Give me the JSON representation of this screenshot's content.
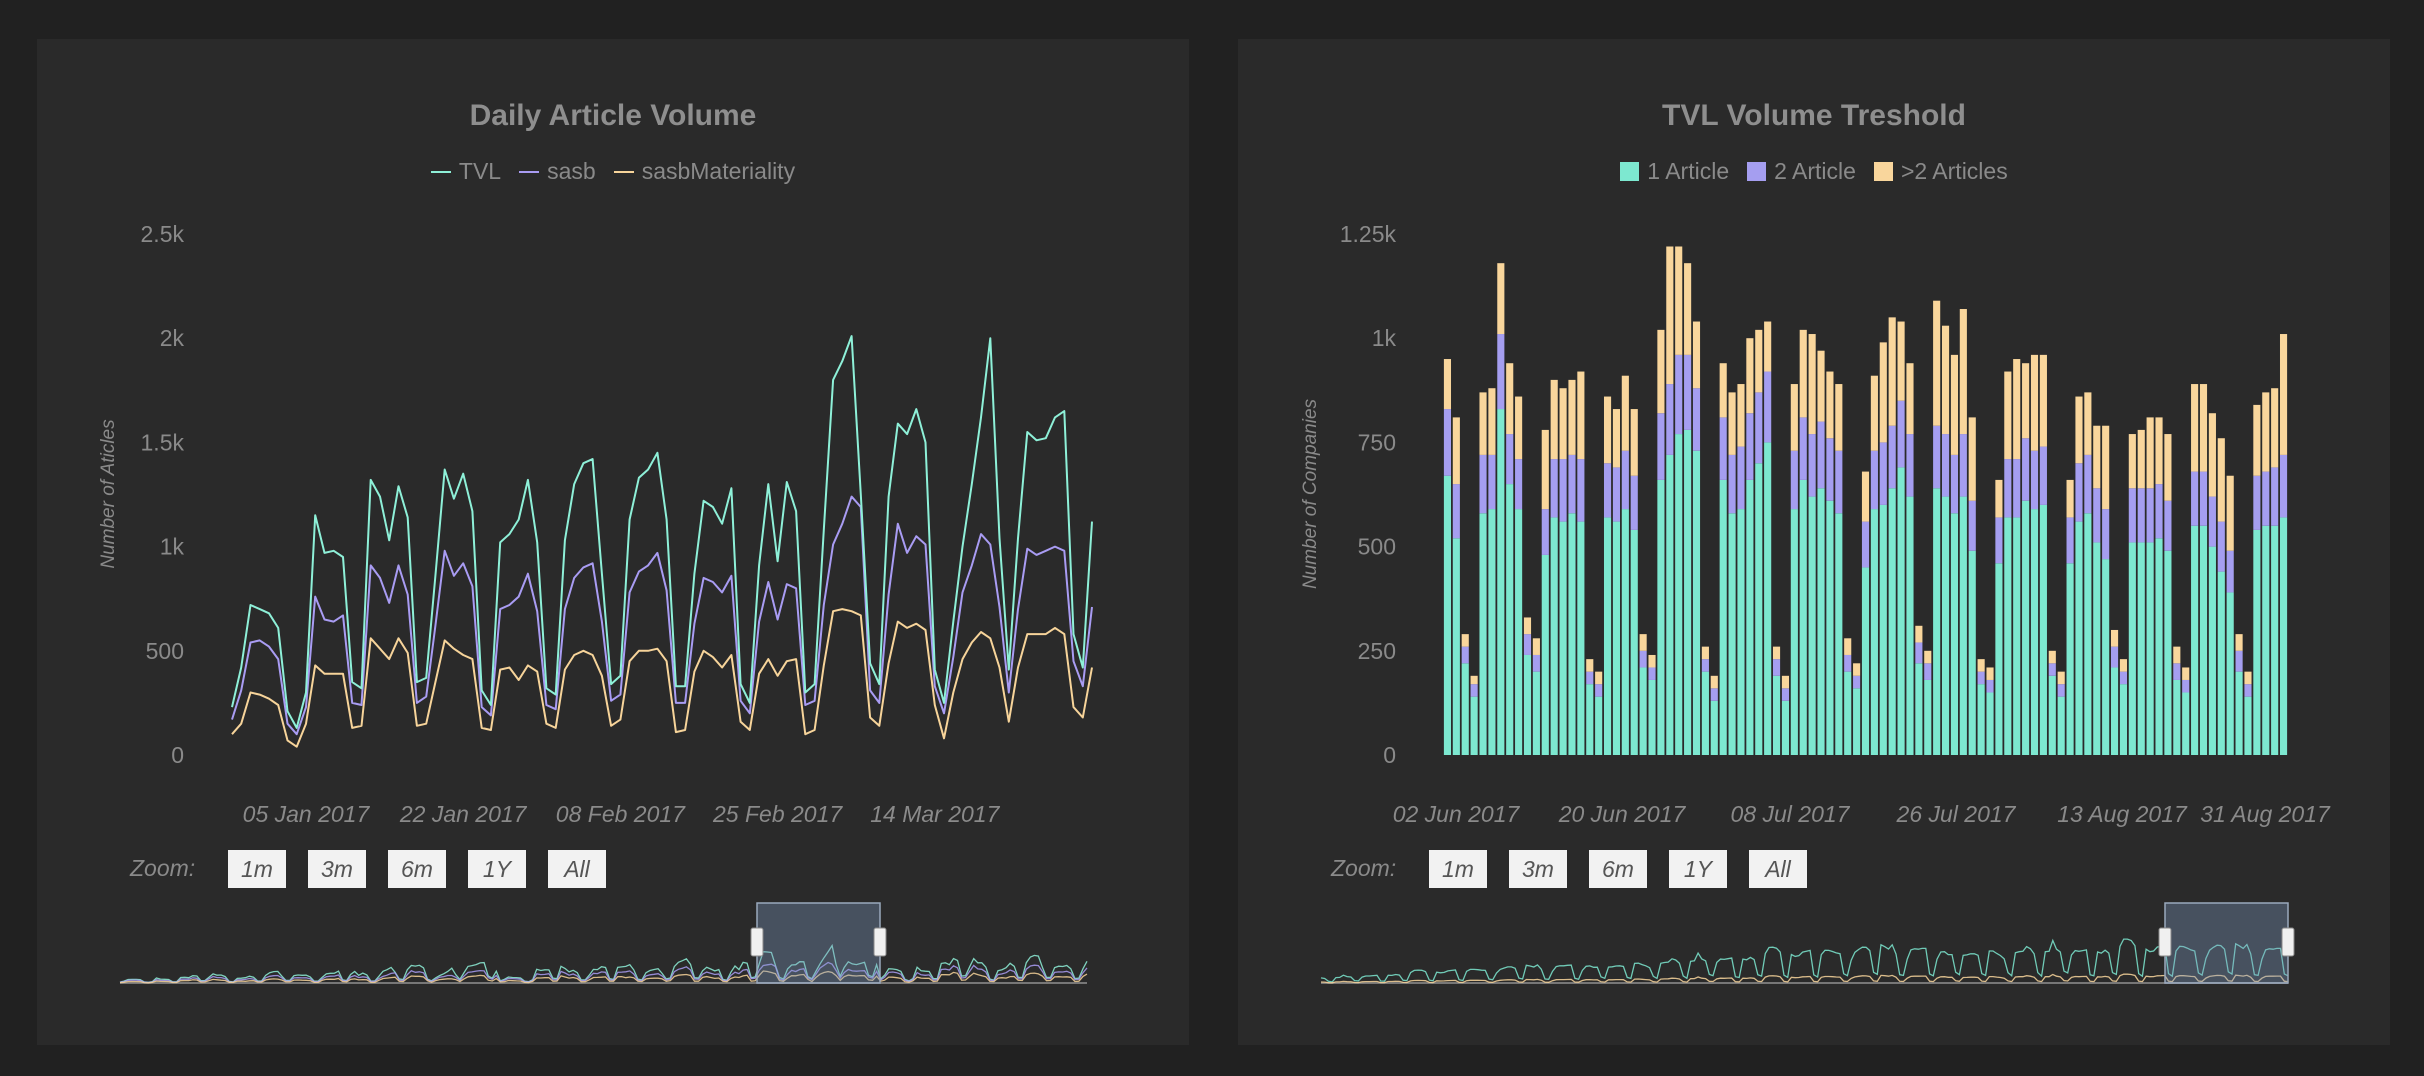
{
  "colors": {
    "tvl": "#8ef0d8",
    "sasb": "#a99cf3",
    "materiality": "#f7d49a",
    "one": "#7de8d0",
    "two": "#a59ef0",
    "more": "#f9d69c"
  },
  "zoom": {
    "label": "Zoom:",
    "buttons": [
      "1m",
      "3m",
      "6m",
      "1Y",
      "All"
    ]
  },
  "chart_data": [
    {
      "type": "line",
      "title": "Daily Article Volume",
      "ylabel": "Number of Aticles",
      "xlabel": "",
      "ylim": [
        0,
        2500
      ],
      "yticks": [
        "0",
        "500",
        "1k",
        "1.5k",
        "2k",
        "2.5k"
      ],
      "xticks": [
        "05 Jan 2017",
        "22 Jan 2017",
        "08 Feb 2017",
        "25 Feb 2017",
        "14 Mar 2017"
      ],
      "legend": "top-center",
      "grid": false,
      "series": [
        {
          "name": "TVL",
          "values": [
            230,
            420,
            720,
            700,
            680,
            610,
            210,
            130,
            300,
            1150,
            970,
            980,
            950,
            350,
            320,
            1320,
            1240,
            1030,
            1290,
            1140,
            350,
            370,
            860,
            1370,
            1230,
            1350,
            1170,
            310,
            240,
            1020,
            1060,
            1130,
            1320,
            1020,
            320,
            290,
            1030,
            1300,
            1400,
            1420,
            870,
            340,
            380,
            1130,
            1330,
            1370,
            1450,
            1130,
            330,
            330,
            870,
            1220,
            1190,
            1110,
            1280,
            340,
            250,
            910,
            1300,
            930,
            1310,
            1170,
            300,
            340,
            1080,
            1800,
            1890,
            2010,
            1250,
            440,
            340,
            1240,
            1590,
            1540,
            1660,
            1500,
            410,
            250,
            640,
            1000,
            1300,
            1620,
            2000,
            1040,
            410,
            1040,
            1550,
            1510,
            1520,
            1620,
            1650,
            580,
            420,
            1120
          ]
        },
        {
          "name": "sasb",
          "values": [
            170,
            310,
            540,
            550,
            520,
            460,
            150,
            100,
            230,
            760,
            650,
            640,
            670,
            250,
            240,
            910,
            850,
            730,
            910,
            770,
            250,
            280,
            620,
            980,
            860,
            920,
            810,
            230,
            190,
            700,
            720,
            760,
            870,
            690,
            240,
            220,
            700,
            850,
            900,
            920,
            640,
            260,
            290,
            780,
            880,
            910,
            970,
            790,
            250,
            250,
            630,
            850,
            830,
            780,
            860,
            260,
            200,
            640,
            830,
            650,
            820,
            800,
            240,
            260,
            720,
            1010,
            1110,
            1240,
            1190,
            310,
            250,
            770,
            1110,
            970,
            1050,
            1010,
            330,
            200,
            470,
            780,
            910,
            1060,
            1010,
            710,
            300,
            700,
            990,
            960,
            980,
            1000,
            980,
            450,
            330,
            710
          ]
        },
        {
          "name": "sasbMateriality",
          "values": [
            100,
            150,
            300,
            290,
            270,
            240,
            70,
            40,
            150,
            430,
            390,
            390,
            390,
            130,
            140,
            560,
            510,
            460,
            560,
            490,
            140,
            150,
            350,
            550,
            510,
            480,
            460,
            130,
            120,
            410,
            420,
            360,
            430,
            400,
            150,
            130,
            410,
            480,
            500,
            480,
            380,
            140,
            170,
            450,
            500,
            500,
            510,
            450,
            110,
            120,
            400,
            500,
            470,
            420,
            480,
            160,
            120,
            390,
            460,
            380,
            450,
            460,
            100,
            120,
            430,
            690,
            700,
            690,
            670,
            180,
            140,
            440,
            640,
            610,
            630,
            600,
            240,
            80,
            300,
            460,
            540,
            590,
            560,
            420,
            160,
            420,
            580,
            580,
            580,
            610,
            580,
            230,
            180,
            420
          ]
        }
      ]
    },
    {
      "type": "bar",
      "stacked": true,
      "title": "TVL Volume Treshold",
      "ylabel": "Number of Companies",
      "xlabel": "",
      "ylim": [
        0,
        1250
      ],
      "yticks": [
        "0",
        "250",
        "500",
        "750",
        "1k",
        "1.25k"
      ],
      "xticks": [
        "02 Jun 2017",
        "20 Jun 2017",
        "08 Jul 2017",
        "26 Jul 2017",
        "13 Aug 2017",
        "31 Aug 2017"
      ],
      "legend": "top-center",
      "grid": false,
      "series": [
        {
          "name": "1 Article",
          "values": [
            670,
            520,
            220,
            140,
            580,
            590,
            830,
            650,
            590,
            240,
            200,
            480,
            570,
            560,
            580,
            560,
            170,
            140,
            570,
            560,
            590,
            540,
            210,
            180,
            660,
            720,
            770,
            780,
            730,
            200,
            130,
            660,
            580,
            590,
            660,
            700,
            750,
            190,
            130,
            590,
            660,
            620,
            640,
            610,
            580,
            200,
            160,
            450,
            590,
            600,
            640,
            690,
            620,
            220,
            180,
            640,
            620,
            580,
            620,
            490,
            170,
            150,
            460,
            570,
            570,
            610,
            590,
            600,
            190,
            140,
            460,
            560,
            580,
            510,
            470,
            210,
            170,
            510,
            510,
            510,
            520,
            490,
            180,
            150,
            550,
            550,
            500,
            440,
            390,
            200,
            140,
            540,
            550,
            550,
            570
          ]
        },
        {
          "name": "2 Article",
          "values": [
            160,
            130,
            40,
            30,
            140,
            130,
            180,
            120,
            120,
            50,
            40,
            110,
            140,
            150,
            140,
            150,
            30,
            30,
            130,
            130,
            140,
            130,
            40,
            30,
            160,
            170,
            190,
            180,
            150,
            30,
            30,
            150,
            140,
            150,
            160,
            170,
            170,
            40,
            30,
            140,
            150,
            150,
            160,
            150,
            150,
            40,
            30,
            110,
            140,
            150,
            150,
            160,
            150,
            50,
            40,
            150,
            150,
            140,
            150,
            120,
            30,
            30,
            110,
            140,
            140,
            150,
            140,
            140,
            30,
            30,
            110,
            140,
            140,
            130,
            120,
            50,
            30,
            130,
            130,
            130,
            130,
            120,
            40,
            30,
            130,
            130,
            120,
            120,
            100,
            50,
            30,
            130,
            130,
            140,
            150
          ]
        },
        {
          "name": ">2 Articles",
          "values": [
            120,
            160,
            30,
            20,
            150,
            160,
            170,
            170,
            150,
            40,
            40,
            190,
            190,
            170,
            180,
            210,
            30,
            30,
            160,
            140,
            180,
            160,
            40,
            30,
            200,
            330,
            260,
            220,
            160,
            30,
            30,
            130,
            150,
            150,
            180,
            150,
            120,
            30,
            30,
            160,
            210,
            240,
            170,
            160,
            160,
            40,
            30,
            120,
            180,
            240,
            260,
            190,
            170,
            40,
            30,
            300,
            260,
            240,
            300,
            200,
            30,
            30,
            90,
            210,
            240,
            180,
            230,
            220,
            30,
            30,
            90,
            160,
            150,
            150,
            200,
            40,
            30,
            130,
            140,
            170,
            160,
            160,
            40,
            30,
            210,
            210,
            200,
            200,
            180,
            40,
            30,
            170,
            190,
            190,
            290
          ]
        }
      ]
    }
  ]
}
